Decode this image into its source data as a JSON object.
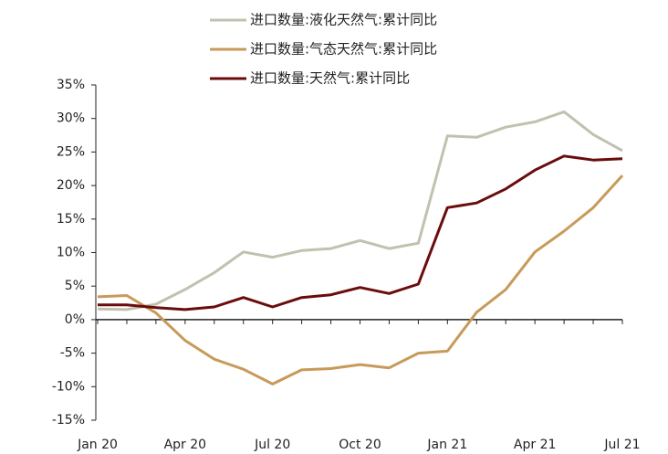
{
  "chart_data": {
    "type": "line",
    "categories": [
      "Jan 20",
      null,
      null,
      "Apr 20",
      null,
      null,
      "Jul 20",
      null,
      null,
      "Oct 20",
      null,
      null,
      "Jan 21",
      null,
      null,
      "Apr 21",
      null,
      null,
      "Jul 21"
    ],
    "series": [
      {
        "name": "进口数量:液化天然气:累计同比",
        "color": "#c2c1b0",
        "values": [
          1.6,
          1.5,
          2.3,
          4.5,
          7.0,
          10.1,
          9.3,
          10.3,
          10.6,
          11.8,
          10.6,
          11.4,
          27.4,
          27.2,
          28.7,
          29.5,
          31.0,
          27.6,
          25.2
        ]
      },
      {
        "name": "进口数量:气态天然气:累计同比",
        "color": "#c89a5a",
        "values": [
          3.4,
          3.6,
          1.0,
          -3.1,
          -5.9,
          -7.4,
          -9.6,
          -7.5,
          -7.3,
          -6.7,
          -7.2,
          -5.0,
          -4.7,
          1.1,
          4.5,
          10.1,
          13.2,
          16.7,
          21.5
        ]
      },
      {
        "name": "进口数量:天然气:累计同比",
        "color": "#6b0c0c",
        "values": [
          2.2,
          2.2,
          1.8,
          1.5,
          1.9,
          3.3,
          1.9,
          3.3,
          3.7,
          4.8,
          3.9,
          5.3,
          16.7,
          17.4,
          19.5,
          22.3,
          24.4,
          23.8,
          24.0
        ]
      }
    ],
    "ylim": [
      -15,
      35
    ],
    "yticks": [
      {
        "value": -15,
        "label": "-15%"
      },
      {
        "value": -10,
        "label": "-10%"
      },
      {
        "value": -5,
        "label": "-5%"
      },
      {
        "value": 0,
        "label": "0%"
      },
      {
        "value": 5,
        "label": "5%"
      },
      {
        "value": 10,
        "label": "10%"
      },
      {
        "value": 15,
        "label": "15%"
      },
      {
        "value": 20,
        "label": "20%"
      },
      {
        "value": 25,
        "label": "25%"
      },
      {
        "value": 30,
        "label": "30%"
      },
      {
        "value": 35,
        "label": "35%"
      }
    ],
    "legend": "top"
  }
}
